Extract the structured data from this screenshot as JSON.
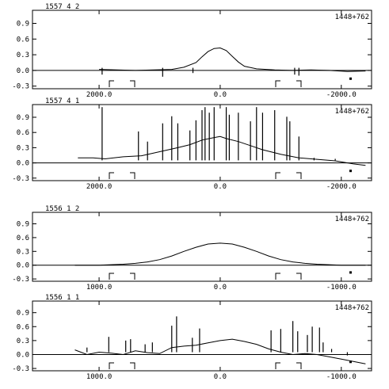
{
  "chart_data": [
    {
      "type": "line",
      "header": "1557  4  2",
      "source": "1448+762",
      "ylim": [
        -0.35,
        1.15
      ],
      "yticks": [
        -0.3,
        0.0,
        0.3,
        0.6,
        0.9
      ],
      "ytick_labels": [
        "-0.3",
        "0.0",
        "0.3",
        "0.6",
        "0.9"
      ],
      "xlim": [
        3100,
        -2500
      ],
      "xticks": [
        2000,
        0,
        -2000
      ],
      "xtick_labels": [
        "2000.0",
        "0.0",
        "-2000.0"
      ],
      "series": [
        {
          "x": [
            2000,
            1700,
            1400,
            1100,
            800,
            600,
            400,
            300,
            200,
            100,
            0,
            -100,
            -200,
            -300,
            -400,
            -600,
            -900,
            -1200,
            -1500,
            -1800,
            -2100,
            -2400
          ],
          "y": [
            0.02,
            0.01,
            0.0,
            0.01,
            0.02,
            0.06,
            0.15,
            0.26,
            0.36,
            0.42,
            0.43,
            0.38,
            0.27,
            0.16,
            0.08,
            0.03,
            0.01,
            0.0,
            0.01,
            0.0,
            -0.02,
            -0.01
          ],
          "spikes": [
            {
              "x": 1950,
              "y": -0.08
            },
            {
              "x": 950,
              "y": -0.12
            },
            {
              "x": 450,
              "y": -0.05
            },
            {
              "x": -1230,
              "y": -0.08
            },
            {
              "x": -1300,
              "y": -0.1
            }
          ]
        }
      ]
    },
    {
      "type": "line",
      "header": "1557  4  1",
      "source": "1448+762",
      "ylim": [
        -0.35,
        1.15
      ],
      "yticks": [
        -0.3,
        0.0,
        0.3,
        0.6,
        0.9
      ],
      "ytick_labels": [
        "-0.3",
        "0.0",
        "0.3",
        "0.6",
        "0.9"
      ],
      "xlim": [
        3100,
        -2500
      ],
      "xticks": [
        2000,
        0,
        -2000
      ],
      "xtick_labels": [
        "2000.0",
        "0.0",
        "-2000.0"
      ],
      "series": [
        {
          "x": [
            2350,
            2100,
            1900,
            1600,
            1300,
            1000,
            700,
            500,
            300,
            100,
            0,
            -100,
            -300,
            -500,
            -700,
            -1000,
            -1300,
            -1600,
            -1900,
            -2200,
            -2400
          ],
          "y": [
            0.1,
            0.1,
            0.08,
            0.12,
            0.14,
            0.22,
            0.3,
            0.36,
            0.45,
            0.5,
            0.52,
            0.48,
            0.42,
            0.34,
            0.26,
            0.17,
            0.1,
            0.07,
            0.04,
            -0.02,
            -0.05
          ],
          "spikes": [
            {
              "x": 1950,
              "y": 1.1
            },
            {
              "x": 1350,
              "y": 0.62
            },
            {
              "x": 1200,
              "y": 0.42
            },
            {
              "x": 950,
              "y": 0.78
            },
            {
              "x": 800,
              "y": 0.92
            },
            {
              "x": 700,
              "y": 0.78
            },
            {
              "x": 500,
              "y": 0.64
            },
            {
              "x": 400,
              "y": 0.84
            },
            {
              "x": 300,
              "y": 1.04
            },
            {
              "x": 250,
              "y": 1.1
            },
            {
              "x": 180,
              "y": 0.99
            },
            {
              "x": 100,
              "y": 1.1
            },
            {
              "x": -100,
              "y": 1.1
            },
            {
              "x": -150,
              "y": 0.95
            },
            {
              "x": -300,
              "y": 0.99
            },
            {
              "x": -500,
              "y": 0.82
            },
            {
              "x": -600,
              "y": 1.1
            },
            {
              "x": -700,
              "y": 0.99
            },
            {
              "x": -900,
              "y": 1.04
            },
            {
              "x": -1100,
              "y": 0.91
            },
            {
              "x": -1150,
              "y": 0.82
            },
            {
              "x": -1300,
              "y": 0.52
            },
            {
              "x": -1550,
              "y": 0.1
            },
            {
              "x": -1900,
              "y": 0.08
            }
          ]
        }
      ]
    },
    {
      "type": "line",
      "header": "1556  1  2",
      "source": "1448+762",
      "ylim": [
        -0.35,
        1.15
      ],
      "yticks": [
        -0.3,
        0.0,
        0.3,
        0.6,
        0.9
      ],
      "ytick_labels": [
        "-0.3",
        "0.0",
        "0.3",
        "0.6",
        "0.9"
      ],
      "xlim": [
        1550,
        -1250
      ],
      "xticks": [
        1000,
        0,
        -1000
      ],
      "xtick_labels": [
        "1000.0",
        "0.0",
        "-1000.0"
      ],
      "series": [
        {
          "x": [
            1200,
            1000,
            800,
            700,
            600,
            500,
            400,
            300,
            200,
            100,
            0,
            -100,
            -200,
            -300,
            -400,
            -500,
            -600,
            -700,
            -800,
            -1000,
            -1200
          ],
          "y": [
            0.0,
            0.0,
            0.02,
            0.04,
            0.07,
            0.12,
            0.2,
            0.3,
            0.39,
            0.46,
            0.48,
            0.46,
            0.39,
            0.3,
            0.2,
            0.12,
            0.07,
            0.04,
            0.02,
            0.0,
            0.0
          ],
          "spikes": []
        }
      ]
    },
    {
      "type": "line",
      "header": "1556  1  1",
      "source": "1448+762",
      "ylim": [
        -0.35,
        1.15
      ],
      "yticks": [
        -0.3,
        0.0,
        0.3,
        0.6,
        0.9
      ],
      "ytick_labels": [
        "-0.3",
        "0.0",
        "0.3",
        "0.6",
        "0.9"
      ],
      "xlim": [
        1550,
        -1250
      ],
      "xticks": [
        1000,
        0,
        -1000
      ],
      "xtick_labels": [
        "1000.0",
        "0.0",
        "-1000.0"
      ],
      "series": [
        {
          "x": [
            1200,
            1100,
            1000,
            900,
            800,
            700,
            600,
            500,
            400,
            300,
            200,
            100,
            0,
            -100,
            -200,
            -300,
            -400,
            -500,
            -600,
            -700,
            -800,
            -900,
            -1000,
            -1100,
            -1200
          ],
          "y": [
            0.1,
            0.0,
            0.05,
            0.03,
            0.0,
            0.08,
            0.04,
            0.02,
            0.15,
            0.18,
            0.2,
            0.25,
            0.3,
            0.33,
            0.28,
            0.22,
            0.12,
            0.05,
            0.0,
            0.02,
            0.0,
            -0.05,
            -0.1,
            -0.15,
            -0.2
          ],
          "spikes": [
            {
              "x": 1100,
              "y": 0.15
            },
            {
              "x": 920,
              "y": 0.38
            },
            {
              "x": 780,
              "y": 0.3
            },
            {
              "x": 740,
              "y": 0.33
            },
            {
              "x": 620,
              "y": 0.22
            },
            {
              "x": 560,
              "y": 0.26
            },
            {
              "x": 400,
              "y": 0.62
            },
            {
              "x": 360,
              "y": 0.82
            },
            {
              "x": 230,
              "y": 0.36
            },
            {
              "x": 170,
              "y": 0.56
            },
            {
              "x": -420,
              "y": 0.52
            },
            {
              "x": -500,
              "y": 0.55
            },
            {
              "x": -600,
              "y": 0.72
            },
            {
              "x": -640,
              "y": 0.5
            },
            {
              "x": -720,
              "y": 0.42
            },
            {
              "x": -760,
              "y": 0.6
            },
            {
              "x": -820,
              "y": 0.58
            },
            {
              "x": -850,
              "y": 0.26
            },
            {
              "x": -920,
              "y": 0.12
            },
            {
              "x": -1050,
              "y": -0.02
            }
          ]
        }
      ]
    }
  ]
}
